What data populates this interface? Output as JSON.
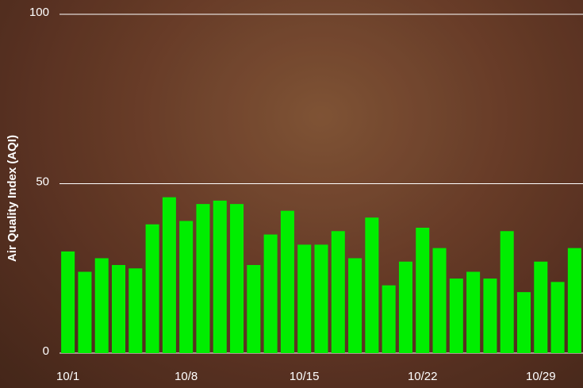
{
  "chart_data": {
    "type": "bar",
    "y_label": "Air Quality Index (AQI)",
    "categories": [
      "10/1",
      null,
      null,
      null,
      null,
      null,
      null,
      "10/8",
      null,
      null,
      null,
      null,
      null,
      null,
      "10/15",
      null,
      null,
      null,
      null,
      null,
      null,
      "10/22",
      null,
      null,
      null,
      null,
      null,
      null,
      "10/29",
      null,
      null
    ],
    "values": [
      30,
      24,
      28,
      26,
      25,
      38,
      46,
      39,
      44,
      45,
      44,
      26,
      35,
      42,
      32,
      32,
      36,
      28,
      40,
      20,
      27,
      37,
      31,
      22,
      24,
      22,
      36,
      18,
      27,
      21,
      31
    ],
    "color": "#00ee00",
    "ylim": [
      0,
      100
    ],
    "yticks": [
      0,
      50,
      100
    ],
    "grid": true
  }
}
